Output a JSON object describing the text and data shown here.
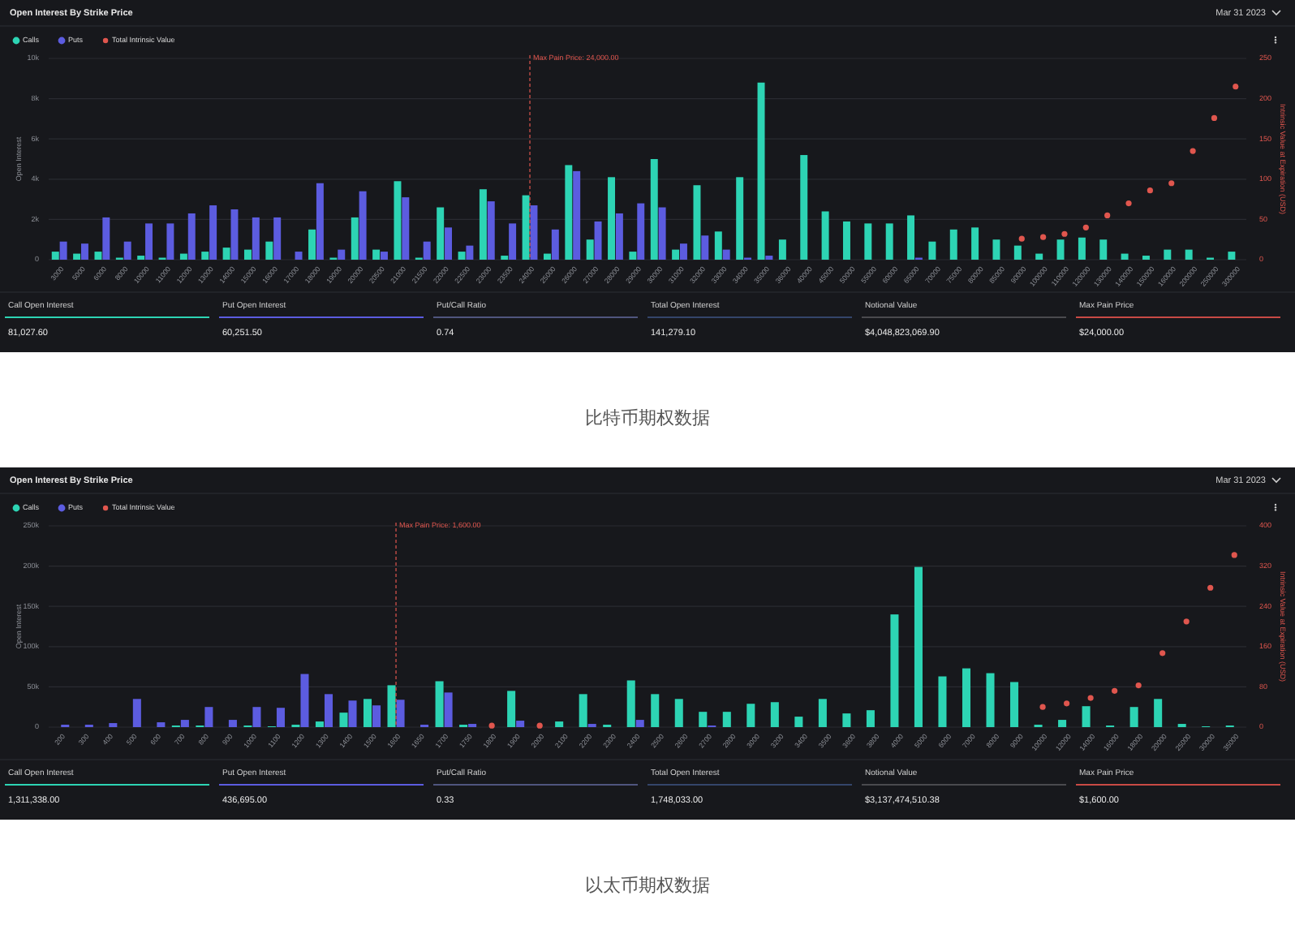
{
  "chart_data": [
    {
      "type": "bar",
      "title": "Open Interest By Strike Price",
      "subtitle": "Mar 31 2023",
      "ylabel": "Open Interest",
      "y2label": "Intrinsic Value at Expiration (USD)",
      "legend": "top left",
      "grid": "y",
      "categories": [
        "3000",
        "5000",
        "6000",
        "8000",
        "10000",
        "11000",
        "12000",
        "13000",
        "14000",
        "15000",
        "16000",
        "17000",
        "18000",
        "19000",
        "20000",
        "20500",
        "21000",
        "21500",
        "22000",
        "22500",
        "23000",
        "23500",
        "24000",
        "25000",
        "26000",
        "27000",
        "28000",
        "29000",
        "30000",
        "31000",
        "32000",
        "33000",
        "34000",
        "35000",
        "36000",
        "40000",
        "45000",
        "50000",
        "55000",
        "60000",
        "65000",
        "70000",
        "75000",
        "80000",
        "85000",
        "90000",
        "100000",
        "110000",
        "120000",
        "130000",
        "140000",
        "150000",
        "160000",
        "200000",
        "250000",
        "300000"
      ],
      "series": [
        {
          "name": "Calls",
          "color": "#2dd4b4",
          "values": [
            400,
            300,
            400,
            100,
            200,
            100,
            300,
            400,
            600,
            500,
            900,
            0,
            1500,
            100,
            2100,
            500,
            3900,
            100,
            2600,
            400,
            3500,
            200,
            3200,
            300,
            4700,
            1000,
            4100,
            400,
            5000,
            500,
            3700,
            1400,
            4100,
            8800,
            1000,
            5200,
            2400,
            1900,
            1800,
            1800,
            2200,
            900,
            1500,
            1600,
            1000,
            700,
            300,
            1000,
            1100,
            1000,
            300,
            200,
            500,
            500,
            100,
            400
          ]
        },
        {
          "name": "Puts",
          "color": "#5c5ce0",
          "values": [
            900,
            800,
            2100,
            900,
            1800,
            1800,
            2300,
            2700,
            2500,
            2100,
            2100,
            400,
            3800,
            500,
            3400,
            400,
            3100,
            900,
            1600,
            700,
            2900,
            1800,
            2700,
            1500,
            4400,
            1900,
            2300,
            2800,
            2600,
            800,
            1200,
            500,
            100,
            200,
            null,
            null,
            null,
            null,
            null,
            null,
            100,
            null,
            null,
            null,
            null,
            null,
            null,
            null,
            null,
            null,
            null,
            null,
            null,
            null,
            null,
            null
          ]
        },
        {
          "name": "Total Intrinsic Value",
          "type": "scatter",
          "axis": "y2",
          "marker": "circle",
          "color": "#e0564e",
          "values": [
            null,
            null,
            null,
            null,
            null,
            null,
            null,
            null,
            null,
            null,
            null,
            null,
            null,
            null,
            null,
            null,
            null,
            null,
            null,
            null,
            null,
            null,
            null,
            null,
            null,
            null,
            null,
            null,
            null,
            null,
            null,
            null,
            null,
            null,
            null,
            null,
            null,
            null,
            null,
            null,
            null,
            null,
            null,
            null,
            null,
            26,
            28,
            32,
            40,
            55,
            70,
            86,
            95,
            135,
            176,
            215
          ]
        }
      ],
      "ylim": [
        0,
        10000
      ],
      "yticks": [
        0,
        {
          "value": 2000,
          "label": "2k"
        },
        {
          "value": 4000,
          "label": "4k"
        },
        {
          "value": 6000,
          "label": "6k"
        },
        {
          "value": 8000,
          "label": "8k"
        },
        {
          "value": 10000,
          "label": "10k"
        }
      ],
      "y2lim": [
        0,
        250
      ],
      "y2ticks": [
        0,
        50,
        100,
        150,
        200,
        250
      ],
      "ref_lines": [
        {
          "axis": "x",
          "value": "24000",
          "label": "Max Pain Price: 24,000.00",
          "color": "#e0564e",
          "line_style": "dashed"
        }
      ],
      "annotations": [
        "比特币期权数据"
      ]
    },
    {
      "type": "other",
      "categories": [
        "Call Open Interest",
        "Put Open Interest",
        "Put/Call Ratio",
        "Total Open Interest",
        "Notional Value",
        "Max Pain Price"
      ],
      "value_labels": [
        "81,027.60",
        "60,251.50",
        "0.74",
        "141,279.10",
        "$4,048,823,069.90",
        "$24,000.00"
      ],
      "colors": [
        "#2dd4b4",
        "#5c5ce0",
        "#50557e",
        "#34456a",
        "#4a4a4e",
        "#c94a45"
      ]
    },
    {
      "type": "bar",
      "title": "Open Interest By Strike Price",
      "subtitle": "Mar 31 2023",
      "ylabel": "Open Interest",
      "y2label": "Intrinsic Value at Expiration (USD)",
      "legend": "top left",
      "grid": "y",
      "categories": [
        "200",
        "300",
        "400",
        "500",
        "600",
        "700",
        "800",
        "900",
        "1000",
        "1100",
        "1200",
        "1300",
        "1400",
        "1500",
        "1600",
        "1650",
        "1700",
        "1750",
        "1800",
        "1900",
        "2000",
        "2100",
        "2200",
        "2300",
        "2400",
        "2500",
        "2600",
        "2700",
        "2800",
        "3000",
        "3200",
        "3400",
        "3500",
        "3600",
        "3800",
        "4000",
        "5000",
        "6000",
        "7000",
        "8000",
        "9000",
        "10000",
        "12000",
        "14000",
        "16000",
        "18000",
        "20000",
        "25000",
        "30000",
        "35000"
      ],
      "series": [
        {
          "name": "Calls",
          "color": "#2dd4b4",
          "values": [
            0,
            0,
            0,
            0,
            0,
            2000,
            2000,
            0,
            2000,
            1000,
            3000,
            7000,
            18000,
            35000,
            52000,
            0,
            57000,
            3000,
            0,
            45000,
            0,
            7000,
            41000,
            3000,
            58000,
            41000,
            35000,
            19000,
            19000,
            29000,
            31000,
            13000,
            35000,
            17000,
            21000,
            140000,
            199000,
            63000,
            73000,
            67000,
            56000,
            3000,
            9000,
            26000,
            2000,
            25000,
            35000,
            4000,
            1000,
            2000
          ]
        },
        {
          "name": "Puts",
          "color": "#5c5ce0",
          "values": [
            3000,
            3000,
            5000,
            35000,
            6000,
            9000,
            25000,
            9000,
            25000,
            24000,
            66000,
            41000,
            33000,
            27000,
            34000,
            3000,
            43000,
            4000,
            null,
            8000,
            null,
            null,
            4000,
            null,
            9000,
            null,
            null,
            2000,
            null,
            null,
            null,
            null,
            null,
            null,
            null,
            null,
            null,
            null,
            null,
            null,
            null,
            null,
            null,
            null,
            null,
            null,
            null,
            null,
            null,
            null
          ]
        },
        {
          "name": "Total Intrinsic Value",
          "type": "scatter",
          "axis": "y2",
          "marker": "circle",
          "color": "#e0564e",
          "values": [
            null,
            null,
            null,
            null,
            null,
            null,
            null,
            null,
            null,
            null,
            null,
            null,
            null,
            null,
            null,
            null,
            null,
            null,
            3,
            null,
            3,
            null,
            null,
            null,
            null,
            null,
            null,
            null,
            null,
            null,
            null,
            null,
            null,
            null,
            null,
            null,
            null,
            null,
            null,
            null,
            null,
            40,
            47,
            58,
            72,
            83,
            147,
            210,
            277,
            342
          ]
        }
      ],
      "ylim": [
        0,
        250000
      ],
      "yticks": [
        0,
        {
          "value": 50000,
          "label": "50k"
        },
        {
          "value": 100000,
          "label": "100k"
        },
        {
          "value": 150000,
          "label": "150k"
        },
        {
          "value": 200000,
          "label": "200k"
        },
        {
          "value": 250000,
          "label": "250k"
        }
      ],
      "y2lim": [
        0,
        400
      ],
      "y2ticks": [
        0,
        80,
        160,
        240,
        320,
        400
      ],
      "ref_lines": [
        {
          "axis": "x",
          "value": "1600",
          "label": "Max Pain Price: 1,600.00",
          "color": "#e0564e",
          "line_style": "dashed"
        }
      ],
      "annotations": [
        "以太币期权数据"
      ]
    },
    {
      "type": "other",
      "categories": [
        "Call Open Interest",
        "Put Open Interest",
        "Put/Call Ratio",
        "Total Open Interest",
        "Notional Value",
        "Max Pain Price"
      ],
      "value_labels": [
        "1,311,338.00",
        "436,695.00",
        "0.33",
        "1,748,033.00",
        "$3,137,474,510.38",
        "$1,600.00"
      ],
      "colors": [
        "#2dd4b4",
        "#5c5ce0",
        "#50557e",
        "#34456a",
        "#4a4a4e",
        "#c94a45"
      ]
    }
  ]
}
